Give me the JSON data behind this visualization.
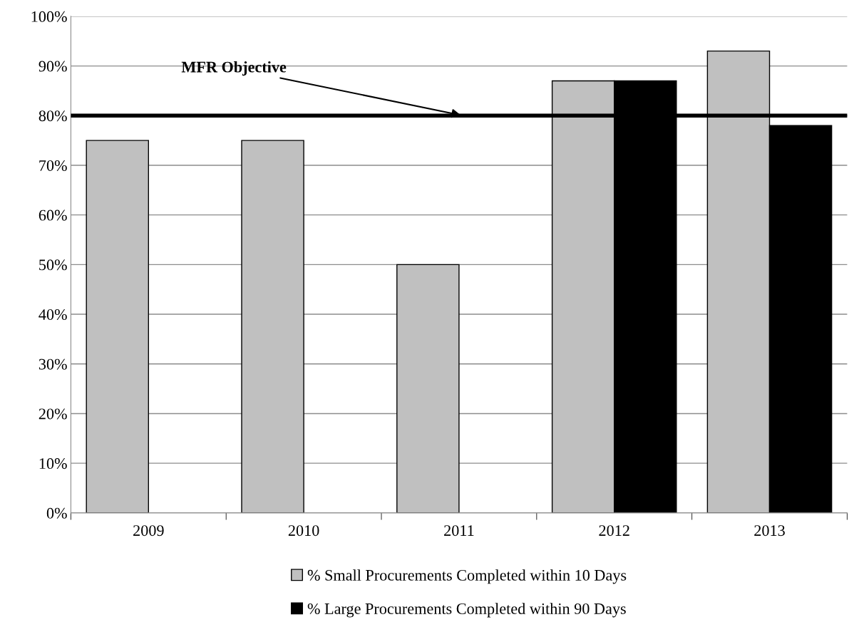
{
  "chart_data": {
    "type": "bar",
    "categories": [
      "2009",
      "2010",
      "2011",
      "2012",
      "2013"
    ],
    "series": [
      {
        "name": "% Small Procurements Completed within 10 Days",
        "color": "#c0c0c0",
        "values": [
          75,
          75,
          50,
          87,
          93
        ]
      },
      {
        "name": "% Large Procurements Completed within 90 Days",
        "color": "#000000",
        "values": [
          null,
          null,
          null,
          87,
          78
        ]
      }
    ],
    "ylim": [
      0,
      100
    ],
    "yticks": [
      {
        "value": 0,
        "label": "0%"
      },
      {
        "value": 10,
        "label": "10%"
      },
      {
        "value": 20,
        "label": "20%"
      },
      {
        "value": 30,
        "label": "30%"
      },
      {
        "value": 40,
        "label": "40%"
      },
      {
        "value": 50,
        "label": "50%"
      },
      {
        "value": 60,
        "label": "60%"
      },
      {
        "value": 70,
        "label": "70%"
      },
      {
        "value": 80,
        "label": "80%"
      },
      {
        "value": 90,
        "label": "90%"
      },
      {
        "value": 100,
        "label": "100%"
      }
    ],
    "ref_lines": [
      {
        "axis": "y",
        "value": 80,
        "label": "MFR Objective",
        "color": "#000000"
      }
    ],
    "grid": "y",
    "legend": "bottom"
  }
}
